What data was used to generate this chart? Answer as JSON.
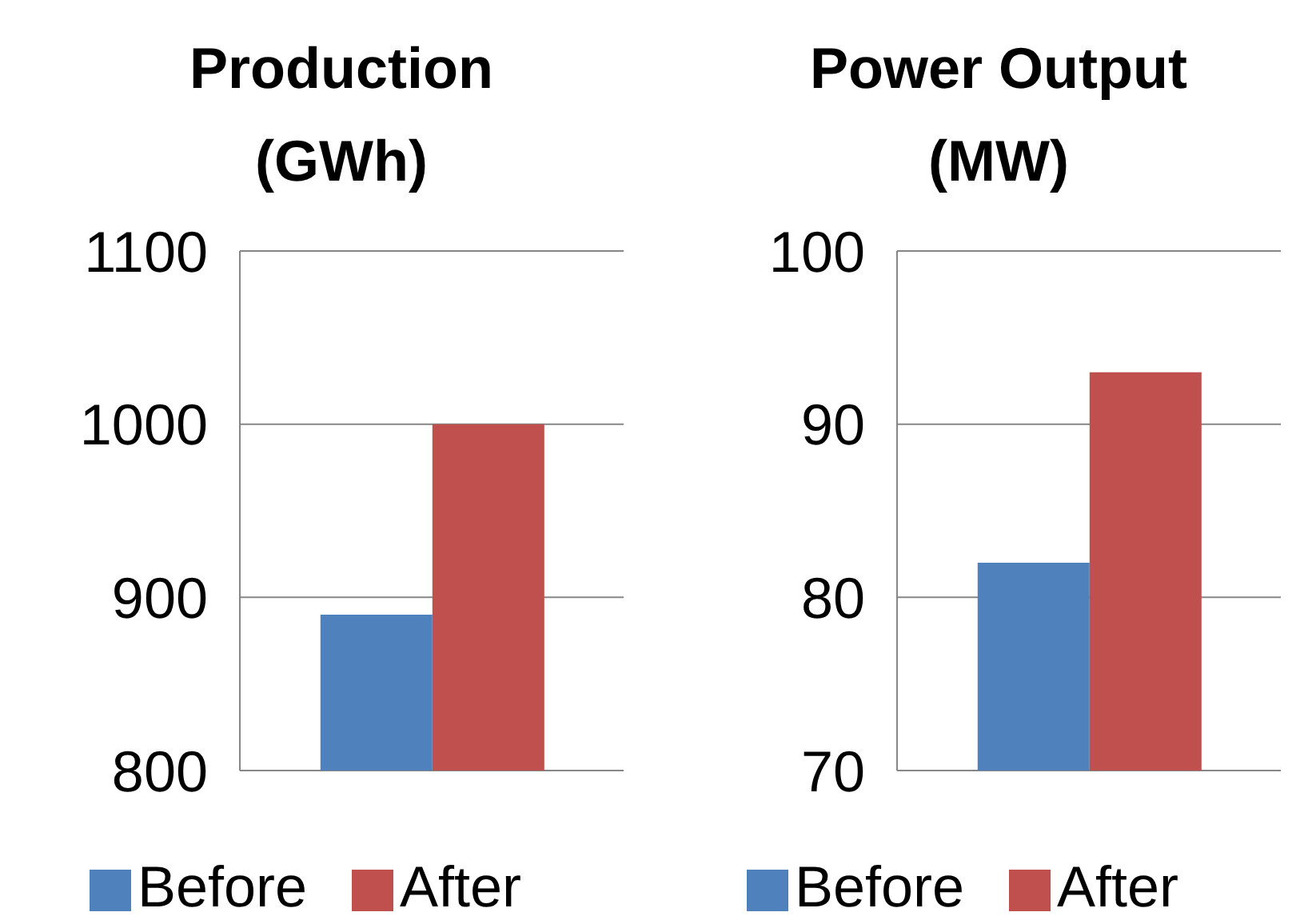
{
  "chart_data": [
    {
      "type": "bar",
      "title": "Production (GWh)",
      "categories": [
        null
      ],
      "series": [
        {
          "name": "Before",
          "color": "#4f81bd",
          "values": [
            890
          ]
        },
        {
          "name": "After",
          "color": "#c0504d",
          "values": [
            1000
          ]
        }
      ],
      "ylim": [
        800,
        1100
      ],
      "yticks": [
        800,
        900,
        1000,
        1100
      ],
      "grid": "y",
      "legend": "bottom"
    },
    {
      "type": "bar",
      "title": "Power Output (MW)",
      "categories": [
        null
      ],
      "series": [
        {
          "name": "Before",
          "color": "#4f81bd",
          "values": [
            82
          ]
        },
        {
          "name": "After",
          "color": "#c0504d",
          "values": [
            93
          ]
        }
      ],
      "ylim": [
        70,
        100
      ],
      "yticks": [
        70,
        80,
        90,
        100
      ],
      "grid": "y",
      "legend": "bottom"
    }
  ]
}
